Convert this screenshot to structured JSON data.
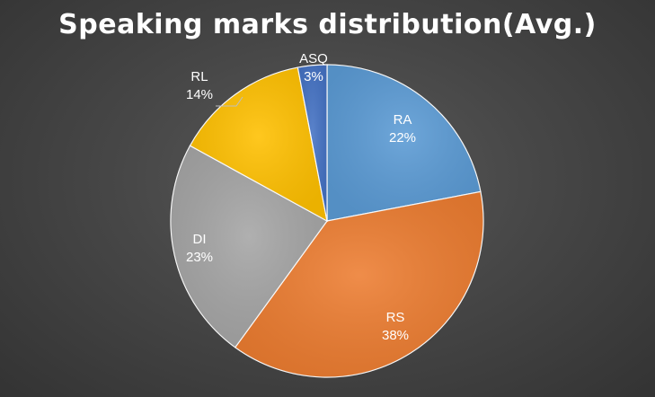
{
  "chart_data": {
    "type": "pie",
    "title": "Speaking marks distribution(Avg.)",
    "legend": "none",
    "slices": [
      {
        "name": "RA",
        "label": "RA",
        "percent_label": "22%",
        "value": 22,
        "color": "#5b9bd5"
      },
      {
        "name": "RS",
        "label": "RS",
        "percent_label": "38%",
        "value": 38,
        "color": "#ed7d31"
      },
      {
        "name": "DI",
        "label": "DI",
        "percent_label": "23%",
        "value": 23,
        "color": "#a5a5a5"
      },
      {
        "name": "RL",
        "label": "RL",
        "percent_label": "14%",
        "value": 14,
        "color": "#ffc000"
      },
      {
        "name": "ASQ",
        "label": "ASQ",
        "percent_label": "3%",
        "value": 3,
        "color": "#4472c4"
      }
    ]
  }
}
